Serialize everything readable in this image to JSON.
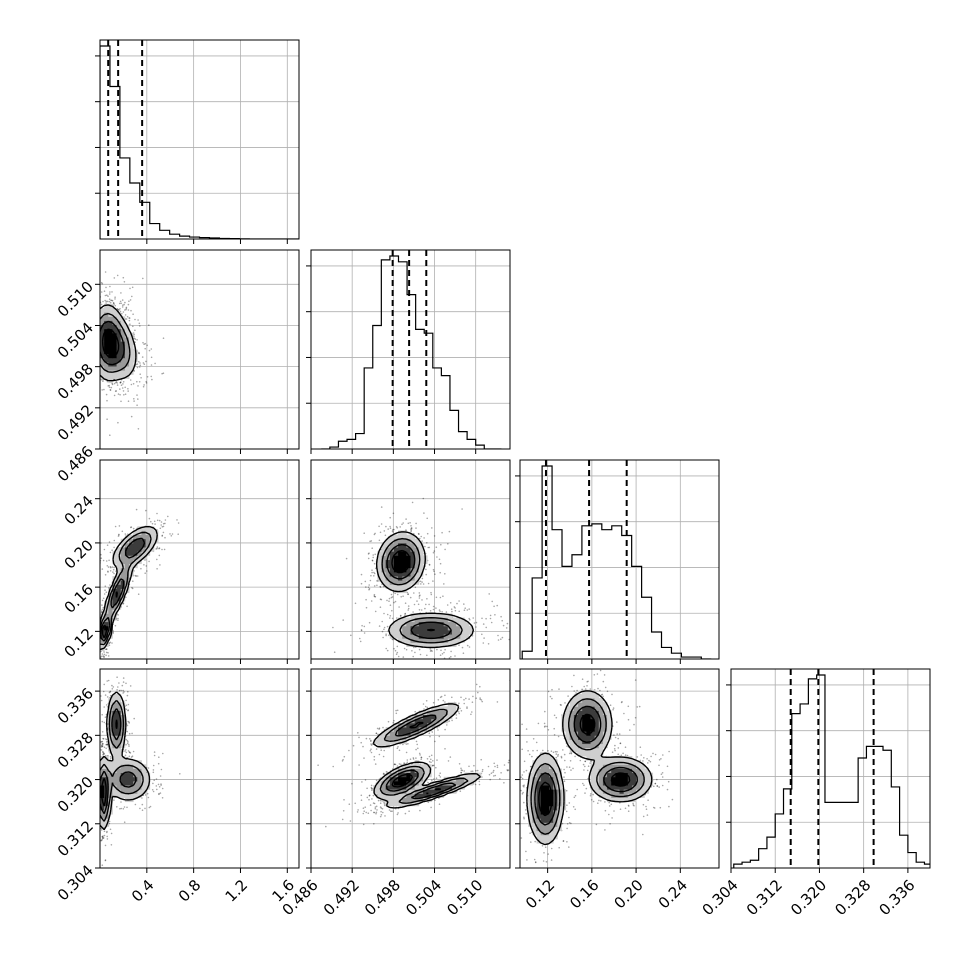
{
  "chart_data": {
    "type": "corner",
    "grid": true,
    "parameters": [
      {
        "range": [
          0,
          1.7
        ],
        "ticks": [
          0.4,
          0.8,
          1.2,
          1.6
        ],
        "tick_labels": [
          "0.4",
          "0.8",
          "1.2",
          "1.6"
        ]
      },
      {
        "range": [
          0.486,
          0.515
        ],
        "ticks": [
          0.486,
          0.492,
          0.498,
          0.504,
          0.51
        ],
        "tick_labels": [
          "0.486",
          "0.492",
          "0.498",
          "0.504",
          "0.510"
        ]
      },
      {
        "range": [
          0.095,
          0.275
        ],
        "ticks": [
          0.12,
          0.16,
          0.2,
          0.24
        ],
        "tick_labels": [
          "0.12",
          "0.16",
          "0.20",
          "0.24"
        ]
      },
      {
        "range": [
          0.304,
          0.34
        ],
        "ticks": [
          0.304,
          0.312,
          0.32,
          0.328,
          0.336
        ],
        "tick_labels": [
          "0.304",
          "0.312",
          "0.320",
          "0.328",
          "0.336"
        ]
      }
    ],
    "histograms": [
      {
        "param": 0,
        "bin_edges": [
          0,
          0.085,
          0.17,
          0.255,
          0.34,
          0.425,
          0.51,
          0.595,
          0.68,
          0.765,
          0.85,
          0.935,
          1.02,
          1.105,
          1.19,
          1.275,
          1.36,
          1.445,
          1.53,
          1.615,
          1.7
        ],
        "counts": [
          1.0,
          0.79,
          0.42,
          0.29,
          0.19,
          0.08,
          0.045,
          0.025,
          0.015,
          0.01,
          0.007,
          0.005,
          0.003,
          0.002,
          0.001,
          0,
          0,
          0,
          0,
          0
        ],
        "quantiles": [
          0.07,
          0.155,
          0.36
        ]
      },
      {
        "param": 1,
        "bin_edges": [
          0.4875,
          0.48875,
          0.49,
          0.49125,
          0.4925,
          0.49375,
          0.495,
          0.49625,
          0.4975,
          0.49875,
          0.5,
          0.50125,
          0.5025,
          0.50375,
          0.505,
          0.50625,
          0.5075,
          0.50875,
          0.51,
          0.51125,
          0.5125,
          0.51375
        ],
        "counts": [
          0,
          0.01,
          0.04,
          0.05,
          0.08,
          0.42,
          0.64,
          0.98,
          1.0,
          0.97,
          0.8,
          0.62,
          0.6,
          0.42,
          0.38,
          0.2,
          0.09,
          0.05,
          0.02,
          0,
          0
        ],
        "quantiles": [
          0.4979,
          0.5003,
          0.5028
        ]
      },
      {
        "param": 2,
        "bin_edges": [
          0.097,
          0.106,
          0.115,
          0.124,
          0.133,
          0.142,
          0.151,
          0.16,
          0.169,
          0.178,
          0.187,
          0.196,
          0.205,
          0.214,
          0.223,
          0.232,
          0.241,
          0.25,
          0.259,
          0.268
        ],
        "counts": [
          0.04,
          0.42,
          1.0,
          0.67,
          0.48,
          0.54,
          0.69,
          0.7,
          0.67,
          0.69,
          0.64,
          0.48,
          0.32,
          0.14,
          0.06,
          0.03,
          0.01,
          0.01,
          0
        ],
        "quantiles": [
          0.1185,
          0.1575,
          0.1915
        ]
      },
      {
        "param": 3,
        "bin_edges": [
          0.3045,
          0.306,
          0.3075,
          0.309,
          0.3105,
          0.312,
          0.3135,
          0.315,
          0.3165,
          0.318,
          0.3195,
          0.321,
          0.3225,
          0.324,
          0.3255,
          0.327,
          0.3285,
          0.33,
          0.3315,
          0.333,
          0.3345,
          0.336,
          0.3375,
          0.339,
          0.3405
        ],
        "counts": [
          0.02,
          0.03,
          0.04,
          0.1,
          0.16,
          0.28,
          0.41,
          0.8,
          0.85,
          0.98,
          1.0,
          0.34,
          0.34,
          0.34,
          0.34,
          0.57,
          0.63,
          0.63,
          0.61,
          0.42,
          0.17,
          0.08,
          0.03,
          0.02
        ],
        "quantiles": [
          0.3148,
          0.3198,
          0.3298
        ]
      }
    ],
    "density_modes": [
      {
        "row": 1,
        "col": 0,
        "modes": [
          {
            "center": [
              0.06,
              0.5015
            ],
            "sd": [
              0.07,
              0.0028
            ],
            "rho": 0.0,
            "peak": 1.0
          },
          {
            "center": [
              0.15,
              0.5008
            ],
            "sd": [
              0.09,
              0.0025
            ],
            "rho": -0.3,
            "peak": 0.8
          }
        ]
      },
      {
        "row": 2,
        "col": 0,
        "modes": [
          {
            "center": [
              0.04,
              0.12
            ],
            "sd": [
              0.03,
              0.008
            ],
            "rho": 0.5,
            "peak": 1.0
          },
          {
            "center": [
              0.15,
              0.155
            ],
            "sd": [
              0.06,
              0.014
            ],
            "rho": 0.8,
            "peak": 0.8
          },
          {
            "center": [
              0.3,
              0.196
            ],
            "sd": [
              0.1,
              0.01
            ],
            "rho": 0.6,
            "peak": 0.7
          }
        ]
      },
      {
        "row": 2,
        "col": 1,
        "modes": [
          {
            "center": [
              0.4991,
              0.183
            ],
            "sd": [
              0.0017,
              0.013
            ],
            "rho": 0.1,
            "peak": 1.0
          },
          {
            "center": [
              0.5035,
              0.121
            ],
            "sd": [
              0.0032,
              0.008
            ],
            "rho": 0.0,
            "peak": 0.75
          }
        ]
      },
      {
        "row": 3,
        "col": 0,
        "modes": [
          {
            "center": [
              0.03,
              0.3175
            ],
            "sd": [
              0.03,
              0.0032
            ],
            "rho": 0.0,
            "peak": 1.0
          },
          {
            "center": [
              0.14,
              0.33
            ],
            "sd": [
              0.04,
              0.003
            ],
            "rho": 0.0,
            "peak": 0.8
          },
          {
            "center": [
              0.24,
              0.32
            ],
            "sd": [
              0.1,
              0.002
            ],
            "rho": 0.0,
            "peak": 0.65
          }
        ]
      },
      {
        "row": 3,
        "col": 1,
        "modes": [
          {
            "center": [
              0.5013,
              0.3298
            ],
            "sd": [
              0.0032,
              0.002
            ],
            "rho": 0.85,
            "peak": 0.8
          },
          {
            "center": [
              0.4993,
              0.3198
            ],
            "sd": [
              0.002,
              0.0016
            ],
            "rho": 0.6,
            "peak": 1.0
          },
          {
            "center": [
              0.504,
              0.318
            ],
            "sd": [
              0.0035,
              0.0016
            ],
            "rho": 0.9,
            "peak": 0.8
          }
        ]
      },
      {
        "row": 3,
        "col": 2,
        "modes": [
          {
            "center": [
              0.118,
              0.3165
            ],
            "sd": [
              0.008,
              0.004
            ],
            "rho": 0.0,
            "peak": 1.0
          },
          {
            "center": [
              0.156,
              0.33
            ],
            "sd": [
              0.011,
              0.003
            ],
            "rho": 0.0,
            "peak": 0.9
          },
          {
            "center": [
              0.186,
              0.32
            ],
            "sd": [
              0.014,
              0.002
            ],
            "rho": 0.0,
            "peak": 0.9
          }
        ]
      }
    ]
  }
}
